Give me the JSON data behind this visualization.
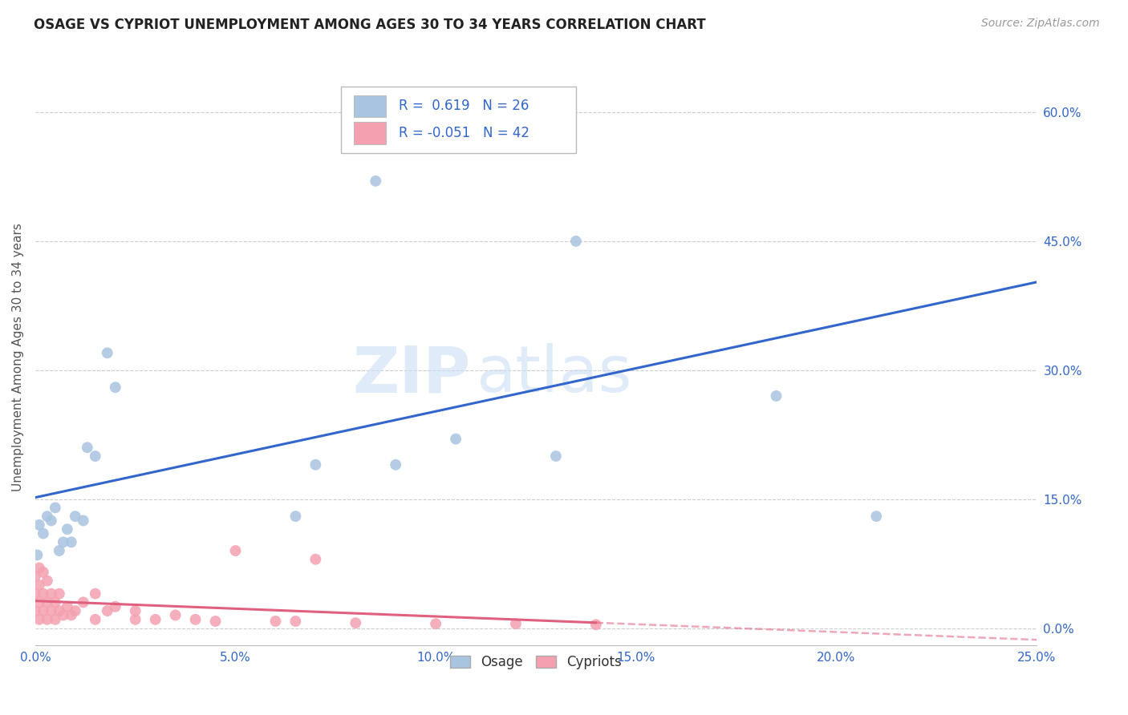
{
  "title": "OSAGE VS CYPRIOT UNEMPLOYMENT AMONG AGES 30 TO 34 YEARS CORRELATION CHART",
  "source": "Source: ZipAtlas.com",
  "ylabel": "Unemployment Among Ages 30 to 34 years",
  "xlim": [
    0.0,
    0.25
  ],
  "ylim": [
    -0.02,
    0.65
  ],
  "xticks": [
    0.0,
    0.05,
    0.1,
    0.15,
    0.2,
    0.25
  ],
  "yticks": [
    0.0,
    0.15,
    0.3,
    0.45,
    0.6
  ],
  "osage_x": [
    0.0005,
    0.001,
    0.002,
    0.003,
    0.004,
    0.005,
    0.006,
    0.007,
    0.008,
    0.009,
    0.01,
    0.012,
    0.013,
    0.015,
    0.018,
    0.02,
    0.065,
    0.07,
    0.085,
    0.13,
    0.135,
    0.185,
    0.21,
    0.09,
    0.105,
    0.12
  ],
  "osage_y": [
    0.085,
    0.12,
    0.11,
    0.13,
    0.125,
    0.14,
    0.09,
    0.1,
    0.115,
    0.1,
    0.13,
    0.125,
    0.21,
    0.2,
    0.32,
    0.28,
    0.13,
    0.19,
    0.52,
    0.2,
    0.45,
    0.27,
    0.13,
    0.19,
    0.22,
    0.6
  ],
  "cypriot_x": [
    0.0,
    0.0,
    0.0,
    0.001,
    0.001,
    0.001,
    0.001,
    0.002,
    0.002,
    0.002,
    0.003,
    0.003,
    0.003,
    0.004,
    0.004,
    0.005,
    0.005,
    0.006,
    0.006,
    0.007,
    0.008,
    0.009,
    0.01,
    0.012,
    0.015,
    0.015,
    0.018,
    0.02,
    0.025,
    0.025,
    0.03,
    0.035,
    0.04,
    0.045,
    0.05,
    0.06,
    0.065,
    0.07,
    0.08,
    0.1,
    0.12,
    0.14
  ],
  "cypriot_y": [
    0.02,
    0.04,
    0.06,
    0.01,
    0.03,
    0.05,
    0.07,
    0.02,
    0.04,
    0.065,
    0.01,
    0.03,
    0.055,
    0.02,
    0.04,
    0.01,
    0.03,
    0.02,
    0.04,
    0.015,
    0.025,
    0.015,
    0.02,
    0.03,
    0.01,
    0.04,
    0.02,
    0.025,
    0.01,
    0.02,
    0.01,
    0.015,
    0.01,
    0.008,
    0.09,
    0.008,
    0.008,
    0.08,
    0.006,
    0.005,
    0.005,
    0.004
  ],
  "osage_color": "#a8c4e0",
  "cypriot_color": "#f4a0b0",
  "osage_line_color": "#3366cc",
  "cypriot_line_color": "#e06080",
  "R_osage": 0.619,
  "N_osage": 26,
  "R_cypriot": -0.051,
  "N_cypriot": 42,
  "watermark_zip": "ZIP",
  "watermark_atlas": "atlas",
  "background_color": "#ffffff",
  "grid_color": "#cccccc"
}
